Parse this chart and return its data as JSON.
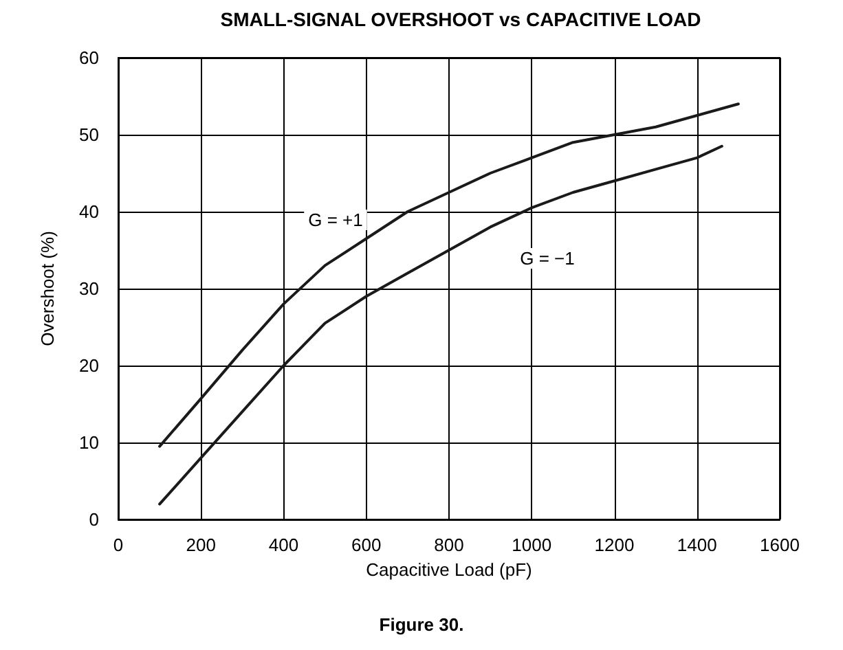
{
  "chart_data": {
    "type": "line",
    "title": "SMALL-SIGNAL OVERSHOOT vs CAPACITIVE LOAD",
    "xlabel": "Capacitive Load (pF)",
    "ylabel": "Overshoot (%)",
    "annotations": [
      "G = +1",
      "G = −1",
      "Figure 30."
    ],
    "x": [
      100,
      200,
      300,
      400,
      500,
      600,
      700,
      800,
      900,
      1000,
      1100,
      1200,
      1300,
      1400,
      1500
    ],
    "series": [
      {
        "color": "#1a1a1a",
        "values": [
          9.5,
          15.7,
          22,
          28,
          33,
          36.5,
          40,
          42.5,
          45,
          47,
          49,
          50,
          51,
          52.5,
          54
        ]
      },
      {
        "color": "#1a1a1a",
        "x": [
          100,
          200,
          300,
          400,
          500,
          600,
          700,
          800,
          900,
          1000,
          1100,
          1200,
          1300,
          1400,
          1460
        ],
        "values": [
          2,
          8,
          14,
          20,
          25.5,
          29,
          32,
          35,
          38,
          40.5,
          42.5,
          44,
          45.5,
          47,
          48.5
        ]
      }
    ],
    "xlim": [
      0,
      1600
    ],
    "xticks": [
      0,
      200,
      400,
      600,
      800,
      1000,
      1200,
      1400,
      1600
    ],
    "ylim": [
      0,
      60
    ],
    "yticks": [
      0,
      10,
      20,
      30,
      40,
      50,
      60
    ],
    "grid": true,
    "marker": "none",
    "line_style": "solid"
  }
}
